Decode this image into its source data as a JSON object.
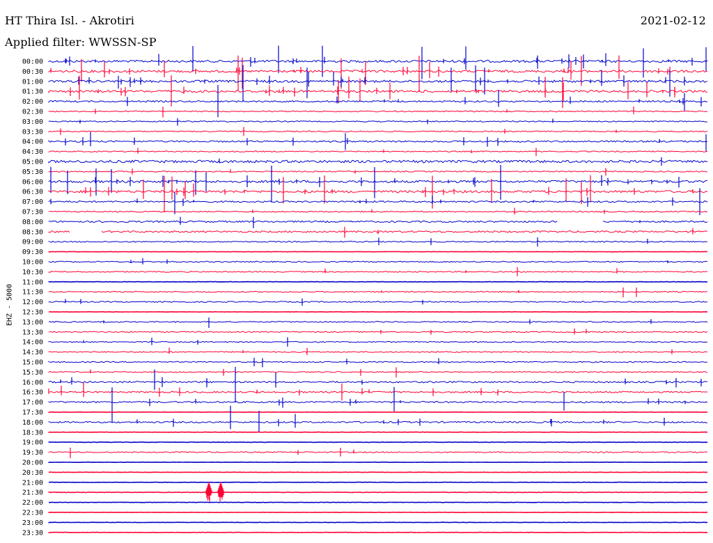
{
  "header": {
    "station": "HT Thira Isl. - Akrotiri",
    "date": "2021-02-12",
    "filter": "Applied filter: WWSSN-SP"
  },
  "channel_label": "EHZ - 5000",
  "colors": {
    "even_hour": "#0000cc",
    "half_hour": "#ff0033",
    "text": "#000000"
  },
  "chart_data": {
    "type": "line",
    "title": "HT Thira Isl. - Akrotiri",
    "subtitle": "Applied filter: WWSSN-SP",
    "ylabel": "EHZ - 5000",
    "xlabel": "",
    "grid": false,
    "rows": [
      {
        "label": "00:00",
        "activity": "high"
      },
      {
        "label": "00:30",
        "activity": "high"
      },
      {
        "label": "01:00",
        "activity": "high"
      },
      {
        "label": "01:30",
        "activity": "high"
      },
      {
        "label": "02:00",
        "activity": "medium"
      },
      {
        "label": "02:30",
        "activity": "low"
      },
      {
        "label": "03:00",
        "activity": "low"
      },
      {
        "label": "03:30",
        "activity": "low"
      },
      {
        "label": "04:00",
        "activity": "medium"
      },
      {
        "label": "04:30",
        "activity": "low"
      },
      {
        "label": "05:00",
        "activity": "noise"
      },
      {
        "label": "05:30",
        "activity": "low"
      },
      {
        "label": "06:00",
        "activity": "high"
      },
      {
        "label": "06:30",
        "activity": "high"
      },
      {
        "label": "07:00",
        "activity": "medium"
      },
      {
        "label": "07:30",
        "activity": "low"
      },
      {
        "label": "08:00",
        "activity": "gap"
      },
      {
        "label": "08:30",
        "activity": "gap"
      },
      {
        "label": "09:00",
        "activity": "low"
      },
      {
        "label": "09:30",
        "activity": "quiet"
      },
      {
        "label": "10:00",
        "activity": "low"
      },
      {
        "label": "10:30",
        "activity": "low"
      },
      {
        "label": "11:00",
        "activity": "quiet"
      },
      {
        "label": "11:30",
        "activity": "low"
      },
      {
        "label": "12:00",
        "activity": "low"
      },
      {
        "label": "12:30",
        "activity": "quiet"
      },
      {
        "label": "13:00",
        "activity": "low"
      },
      {
        "label": "13:30",
        "activity": "low"
      },
      {
        "label": "14:00",
        "activity": "low"
      },
      {
        "label": "14:30",
        "activity": "low"
      },
      {
        "label": "15:00",
        "activity": "low"
      },
      {
        "label": "15:30",
        "activity": "low"
      },
      {
        "label": "16:00",
        "activity": "medium"
      },
      {
        "label": "16:30",
        "activity": "medium"
      },
      {
        "label": "17:00",
        "activity": "medium"
      },
      {
        "label": "17:30",
        "activity": "quiet"
      },
      {
        "label": "18:00",
        "activity": "medium"
      },
      {
        "label": "18:30",
        "activity": "quiet"
      },
      {
        "label": "19:00",
        "activity": "quiet"
      },
      {
        "label": "19:30",
        "activity": "low"
      },
      {
        "label": "20:00",
        "activity": "quiet"
      },
      {
        "label": "20:30",
        "activity": "quiet"
      },
      {
        "label": "21:00",
        "activity": "quiet"
      },
      {
        "label": "21:30",
        "activity": "event"
      },
      {
        "label": "22:00",
        "activity": "quiet"
      },
      {
        "label": "22:30",
        "activity": "quiet"
      },
      {
        "label": "23:00",
        "activity": "quiet"
      },
      {
        "label": "23:30",
        "activity": "quiet"
      }
    ]
  }
}
